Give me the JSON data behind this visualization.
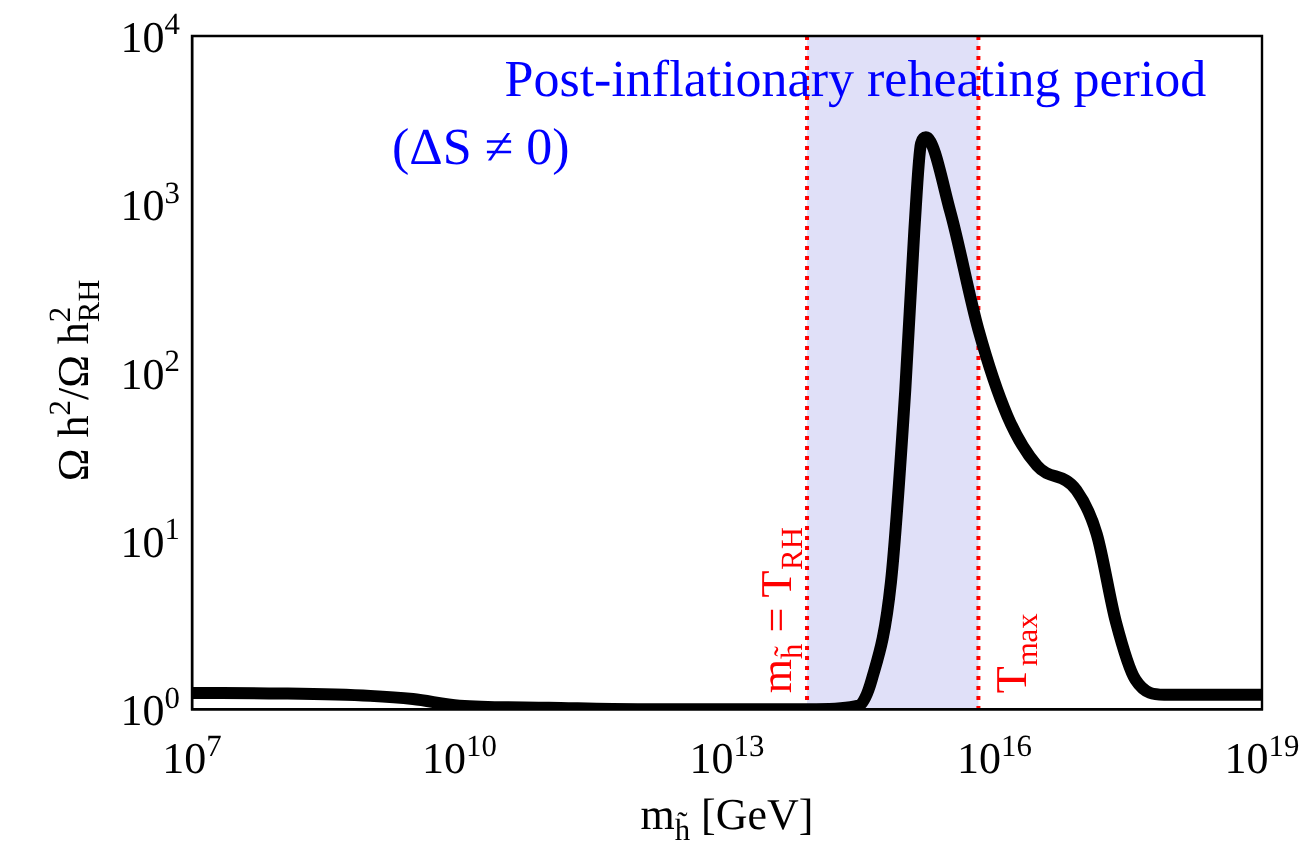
{
  "chart_data": {
    "type": "line",
    "xlabel": "m$_{h̃}$ [GeV]",
    "ylabel": "Ω h$^{2}$/Ω h$^{2}$$_{RH}$",
    "log": "xy",
    "grid": false,
    "legend": false,
    "marker": "none",
    "line_style": "solid",
    "annotations": [
      "Post-inflationary reheating period",
      "(ΔS ≠ 0)"
    ],
    "xlim": [
      10000000.0,
      1e+19
    ],
    "ylim": [
      1,
      10000
    ],
    "xticks": [
      {
        "value": 10000000.0,
        "label": "10$^{7}$"
      },
      {
        "value": 10000000000.0,
        "label": "10$^{10}$"
      },
      {
        "value": 10000000000000.0,
        "label": "10$^{13}$"
      },
      {
        "value": 1e+16,
        "label": "10$^{16}$"
      },
      {
        "value": 1e+19,
        "label": "10$^{19}$"
      }
    ],
    "yticks": [
      {
        "value": 1,
        "label": "10$^{0}$"
      },
      {
        "value": 10,
        "label": "10$^{1}$"
      },
      {
        "value": 100,
        "label": "10$^{2}$"
      },
      {
        "value": 1000,
        "label": "10$^{3}$"
      },
      {
        "value": 10000,
        "label": "10$^{4}$"
      }
    ],
    "ref_lines": [
      {
        "axis": "x",
        "value": 79000000000000.0,
        "label": "m$_{h̃}$ = T$_{RH}$",
        "color": "#ff0000",
        "line_style": "dotted"
      },
      {
        "axis": "x",
        "value": 6600000000000000.0,
        "label": "T$_{max}$",
        "color": "#ff0000",
        "line_style": "dotted"
      }
    ],
    "bands": [
      {
        "axis": "x",
        "from": 79000000000000.0,
        "to": 6600000000000000.0,
        "color": "#e0e0f8"
      }
    ],
    "series": [
      {
        "color": "#000000",
        "x": [
          10000000.0,
          100000000.0,
          1000000000.0,
          3000000000.0,
          10000000000.0,
          100000000000.0,
          1000000000000.0,
          10000000000000.0,
          100000000000000.0,
          300000000000000.0,
          420000000000000.0,
          690000000000000.0,
          1000000000000000.0,
          1260000000000000.0,
          1500000000000000.0,
          1700000000000000.0,
          3200000000000000.0,
          6600000000000000.0,
          1.4e+16,
          3e+16,
          8.3e+16,
          1.4e+17,
          2.3e+17,
          3.8e+17,
          8e+17,
          1e+19
        ],
        "values": [
          1.25,
          1.24,
          1.2,
          1.15,
          1.05,
          1.02,
          1,
          1,
          1,
          1.05,
          1.5,
          5.7,
          80,
          690,
          2300,
          2500,
          900,
          180,
          55,
          28,
          20,
          11,
          3.3,
          1.5,
          1.22,
          1.22
        ]
      }
    ]
  }
}
